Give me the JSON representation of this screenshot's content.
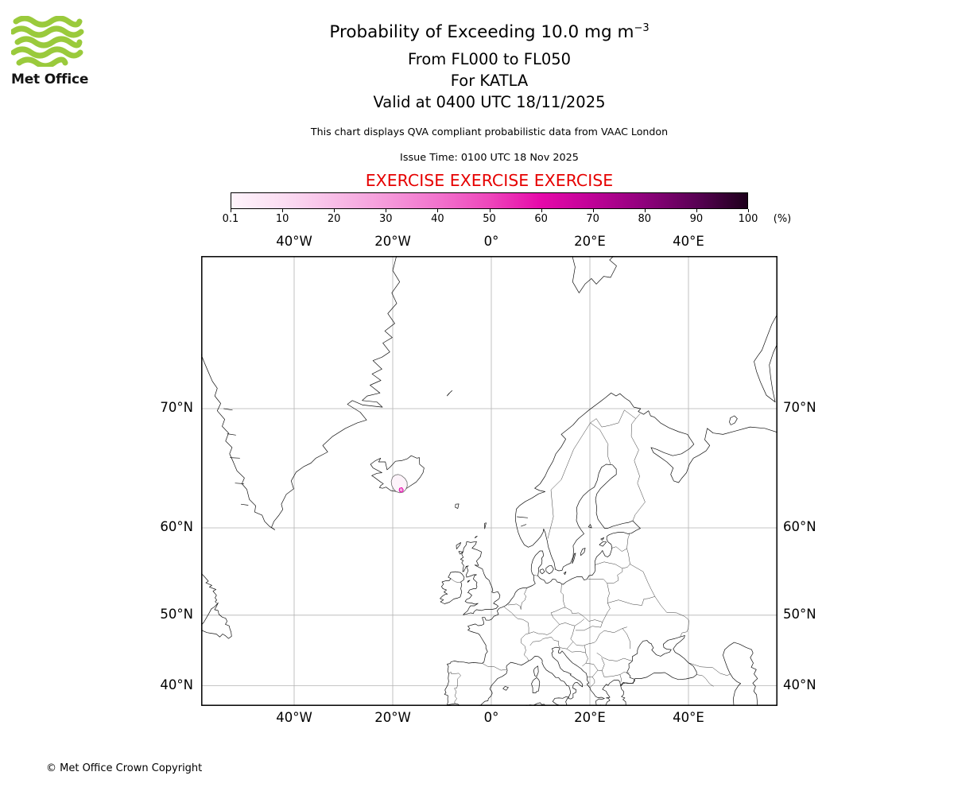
{
  "logo": {
    "brand": "Met Office"
  },
  "header": {
    "title": "Probability of Exceeding 10.0 mg m",
    "title_sup": "−3",
    "subtitle_levels": "From FL000 to FL050",
    "subtitle_volcano": "For KATLA",
    "subtitle_valid": "Valid at 0400 UTC 18/11/2025",
    "description": "This chart displays QVA compliant probabilistic data from VAAC London",
    "issue_time": "Issue Time: 0100 UTC 18 Nov 2025",
    "exercise": "EXERCISE EXERCISE EXERCISE"
  },
  "colorbar": {
    "tick_labels": [
      "0.1",
      "10",
      "20",
      "30",
      "40",
      "50",
      "60",
      "70",
      "80",
      "90",
      "100"
    ],
    "tick_values_percent": [
      0.1,
      10,
      20,
      30,
      40,
      50,
      60,
      70,
      80,
      90,
      100
    ],
    "unit": "(%)",
    "gradient_stops": [
      "#fef4fb",
      "#fbddf2",
      "#f8bde7",
      "#f59ada",
      "#f273cd",
      "#ee46bb",
      "#e609aa",
      "#bf0297",
      "#8f017c",
      "#5a0155",
      "#1d001b"
    ]
  },
  "map": {
    "lon_labels": [
      "40°W",
      "20°W",
      "0°",
      "20°E",
      "40°E"
    ],
    "lon_ticks": [
      -40,
      -20,
      0,
      20,
      40
    ],
    "lat_labels": [
      "70°N",
      "60°N",
      "50°N",
      "40°N"
    ],
    "lat_ticks": [
      70,
      60,
      50,
      40
    ],
    "hazard": {
      "low_fill": "#fdf3fa",
      "low_stroke": "#6e6e6e",
      "fill": "#f6a8e0",
      "stroke": "#e500ac"
    }
  },
  "colors": {
    "exercise_red": "#e60000",
    "logo_green": "#9aca3c",
    "graticule_gray": "#b3b3b3"
  },
  "footer": {
    "copyright": "© Met Office Crown Copyright"
  },
  "chart_data": {
    "type": "map-probability-contour",
    "title": "Probability of Exceeding 10.0 mg m−3",
    "flight_levels": "FL000 to FL050",
    "volcano": "KATLA",
    "valid_time": "0400 UTC 18/11/2025",
    "issue_time": "0100 UTC 18 Nov 2025",
    "source": "VAAC London",
    "probability_scale_percent": [
      0.1,
      10,
      20,
      30,
      40,
      50,
      60,
      70,
      80,
      90,
      100
    ],
    "projection": "mercator",
    "map_extent": {
      "lon_min": -58.9,
      "lon_max": 58.1,
      "lat_min": 36.9,
      "lat_max": 78.3
    },
    "contours": [
      {
        "probability_percent": 0.1,
        "approx_center": {
          "lon": -18.6,
          "lat": 64.2
        },
        "note": "small outline contour over southern Iceland around Katla"
      },
      {
        "probability_percent": 10,
        "approx_center": {
          "lon": -18.2,
          "lat": 63.6
        },
        "note": "tiny filled pink area on Iceland south coast"
      }
    ]
  }
}
